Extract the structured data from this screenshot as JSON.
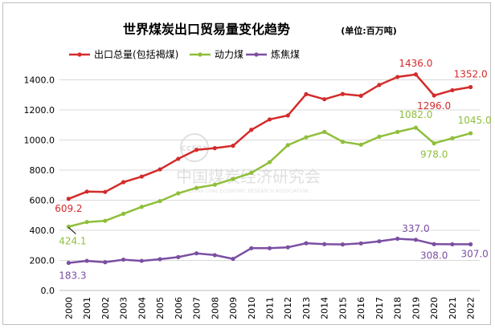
{
  "chart_data": {
    "type": "line",
    "title": "世界煤炭出口贸易量变化趋势",
    "unit_label": "(单位:百万吨)",
    "categories": [
      "2000",
      "2001",
      "2002",
      "2003",
      "2004",
      "2005",
      "2006",
      "2007",
      "2008",
      "2009",
      "2010",
      "2011",
      "2012",
      "2013",
      "2014",
      "2015",
      "2016",
      "2017",
      "2018",
      "2019",
      "2020",
      "2021",
      "2022"
    ],
    "ylim": [
      0,
      1600
    ],
    "yticks": [
      "0.0",
      "200.0",
      "400.0",
      "600.0",
      "800.0",
      "1000.0",
      "1200.0",
      "1400.0"
    ],
    "legend_position": "top-left",
    "series": [
      {
        "name": "出口总量(包括褐煤)",
        "color": "#d42b2b",
        "values": [
          609.2,
          657,
          655,
          720,
          757,
          805,
          875,
          935,
          946,
          962,
          1068,
          1137,
          1163,
          1305,
          1271,
          1306,
          1294,
          1366,
          1419,
          1436.0,
          1296.0,
          1331,
          1352.0
        ]
      },
      {
        "name": "动力煤",
        "color": "#8fbf3a",
        "values": [
          424.1,
          455,
          463,
          510,
          556,
          594,
          646,
          682,
          703,
          741,
          782,
          853,
          966,
          1018,
          1054,
          988,
          969,
          1022,
          1054,
          1082.0,
          978.0,
          1012,
          1045.0
        ]
      },
      {
        "name": "炼焦煤",
        "color": "#7b4fa2",
        "values": [
          183.3,
          197,
          188,
          205,
          197,
          208,
          222,
          247,
          235,
          210,
          281,
          281,
          287,
          314,
          308,
          306,
          313,
          327,
          344,
          337.0,
          308.0,
          307,
          307.0
        ]
      }
    ],
    "annotations": [
      {
        "text": "1436.0",
        "series": 0,
        "index": 19
      },
      {
        "text": "1296.0",
        "series": 0,
        "index": 20
      },
      {
        "text": "1352.0",
        "series": 0,
        "index": 22
      },
      {
        "text": "609.2",
        "series": 0,
        "index": 0
      },
      {
        "text": "1082.0",
        "series": 1,
        "index": 19
      },
      {
        "text": "978.0",
        "series": 1,
        "index": 20
      },
      {
        "text": "1045.0",
        "series": 1,
        "index": 22
      },
      {
        "text": "424.1",
        "series": 1,
        "index": 0
      },
      {
        "text": "337.0",
        "series": 2,
        "index": 19
      },
      {
        "text": "308.0",
        "series": 2,
        "index": 20
      },
      {
        "text": "307.0",
        "series": 2,
        "index": 22
      },
      {
        "text": "183.3",
        "series": 2,
        "index": 0
      }
    ],
    "watermark": {
      "text_cn": "中国煤炭经济研究会",
      "text_en": "CHINA COAL ECONOMIC RESEARCH ASSOCIATION",
      "logo_text": "CCERA"
    }
  }
}
